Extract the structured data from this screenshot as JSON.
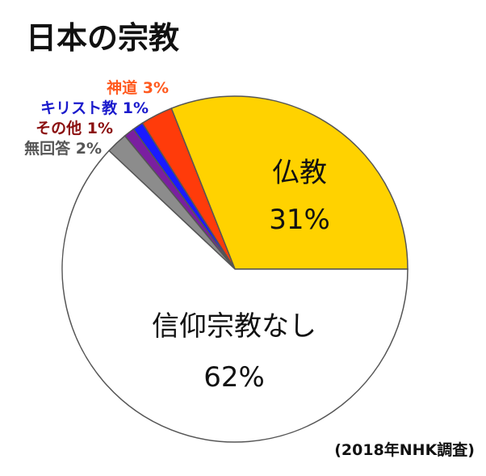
{
  "chart_data": {
    "type": "pie",
    "title": "日本の宗教",
    "source": "(2018年NHK調査)",
    "unit": "%",
    "start": "3 o'clock, counter-clockwise",
    "slices": [
      {
        "label": "仏教",
        "value": 31,
        "color": "#ffd200",
        "placement": "inside"
      },
      {
        "label": "神道",
        "value": 3,
        "color": "#ff3b0a",
        "placement": "outside",
        "label_color": "#ff5a1f"
      },
      {
        "label": "キリスト教",
        "value": 1,
        "color": "#1a1aff",
        "placement": "outside",
        "label_color": "#1a1acc"
      },
      {
        "label": "その他",
        "value": 1,
        "color": "#7a1fa0",
        "placement": "outside",
        "label_color": "#8b1010"
      },
      {
        "label": "無回答",
        "value": 2,
        "color": "#8c8c8c",
        "placement": "outside",
        "label_color": "#555555"
      },
      {
        "label": "信仰宗教なし",
        "value": 62,
        "color": "#ffffff",
        "placement": "inside"
      }
    ]
  }
}
